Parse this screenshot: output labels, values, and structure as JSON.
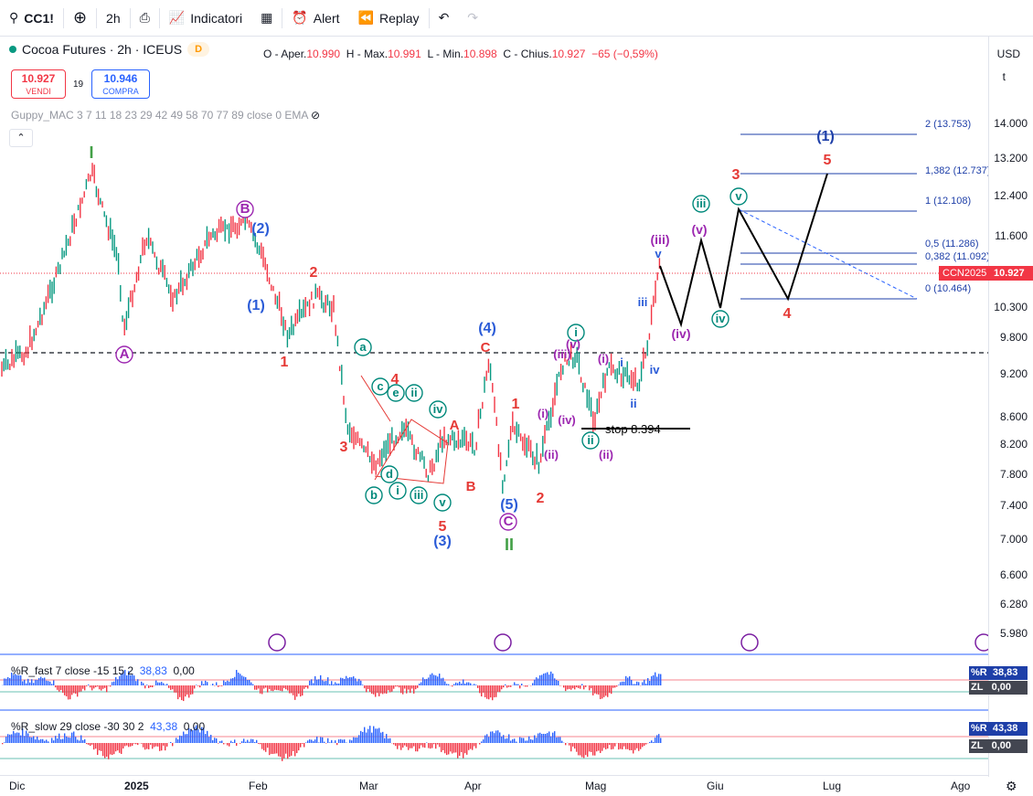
{
  "toolbar": {
    "symbol": "CC1!",
    "interval": "2h",
    "indicators": "Indicatori",
    "alert": "Alert",
    "replay": "Replay"
  },
  "legend": {
    "title": "Cocoa Futures · 2h · ICEUS",
    "badge": "D"
  },
  "ohlc": {
    "o_label": "O - Aper.",
    "o": "10.990",
    "h_label": "H - Max.",
    "h": "10.991",
    "l_label": "L - Min.",
    "l": "10.898",
    "c_label": "C - Chius.",
    "c": "10.927",
    "chg": "−65 (−0,59%)"
  },
  "trade": {
    "sell_price": "10.927",
    "sell_label": "VENDI",
    "spread": "19",
    "buy_price": "10.946",
    "buy_label": "COMPRA"
  },
  "guppy": "Guppy_MAC 3 7 11 18 23 29 42 49 58 70 77 89 close 0 EMA",
  "axis": {
    "currency": "USD",
    "unit": "t",
    "ticks": [
      "14.000",
      "13.200",
      "12.400",
      "11.600",
      "10.300",
      "9.800",
      "9.200",
      "8.600",
      "8.200",
      "7.800",
      "7.400",
      "7.000",
      "6.600",
      "6.280",
      "5.980"
    ],
    "symbol_tag": "CCN2025",
    "last_price": "10.927"
  },
  "fib": [
    "2 (13.753)",
    "1,382 (12.737)",
    "1 (12.108)",
    "0,5 (11.286)",
    "0,382 (11.092)",
    "0 (10.464)"
  ],
  "stop": "stop 8.394",
  "waves": [
    {
      "t": "I",
      "c": "#43a047"
    },
    {
      "t": "II",
      "c": "#43a047"
    },
    {
      "t": "(1)",
      "c": "#1e3fa8"
    },
    {
      "t": "(2)",
      "c": "#2a5bd7"
    },
    {
      "t": "(3)",
      "c": "#2a5bd7"
    },
    {
      "t": "(4)",
      "c": "#2a5bd7"
    },
    {
      "t": "(5)",
      "c": "#2a5bd7"
    },
    {
      "t": "A",
      "c": "#9c27b0"
    },
    {
      "t": "B",
      "c": "#9c27b0"
    },
    {
      "t": "C",
      "c": "#9c27b0"
    },
    {
      "t": "1",
      "c": "#e53935"
    },
    {
      "t": "2",
      "c": "#e53935"
    },
    {
      "t": "3",
      "c": "#e53935"
    },
    {
      "t": "4",
      "c": "#e53935"
    },
    {
      "t": "5",
      "c": "#e53935"
    },
    {
      "t": "A",
      "c": "#e53935"
    },
    {
      "t": "B",
      "c": "#e53935"
    },
    {
      "t": "C",
      "c": "#e53935"
    },
    {
      "t": "(iii)",
      "c": "#9c27b0"
    },
    {
      "t": "(iv)",
      "c": "#9c27b0"
    },
    {
      "t": "(v)",
      "c": "#9c27b0"
    },
    {
      "t": "(i)",
      "c": "#9c27b0"
    },
    {
      "t": "(ii)",
      "c": "#9c27b0"
    },
    {
      "t": "i",
      "c": "#2a5bd7"
    },
    {
      "t": "ii",
      "c": "#2a5bd7"
    },
    {
      "t": "iii",
      "c": "#2a5bd7"
    },
    {
      "t": "iv",
      "c": "#2a5bd7"
    },
    {
      "t": "v",
      "c": "#2a5bd7"
    },
    {
      "t": "a",
      "c": "#00897b"
    },
    {
      "t": "b",
      "c": "#00897b"
    },
    {
      "t": "c",
      "c": "#00897b"
    },
    {
      "t": "d",
      "c": "#00897b"
    },
    {
      "t": "e",
      "c": "#00897b"
    },
    {
      "t": "i",
      "c": "#00897b"
    },
    {
      "t": "ii",
      "c": "#00897b"
    },
    {
      "t": "iii",
      "c": "#00897b"
    },
    {
      "t": "iv",
      "c": "#00897b"
    },
    {
      "t": "v",
      "c": "#00897b"
    }
  ],
  "ind1": {
    "label": "%R_fast 7 close -15 15 2",
    "v1": "38,83",
    "v2": "0,00",
    "tag1": "%R",
    "tag2": "ZL"
  },
  "ind2": {
    "label": "%R_slow 29 close -30 30 2",
    "v1": "43,38",
    "v2": "0,00",
    "tag1": "%R",
    "tag2": "ZL"
  },
  "xaxis": [
    "Dic",
    "2025",
    "Feb",
    "Mar",
    "Apr",
    "Mag",
    "Giu",
    "Lug",
    "Ago"
  ],
  "colors": {
    "up": "#089981",
    "down": "#f23645",
    "blue": "#2962ff"
  }
}
